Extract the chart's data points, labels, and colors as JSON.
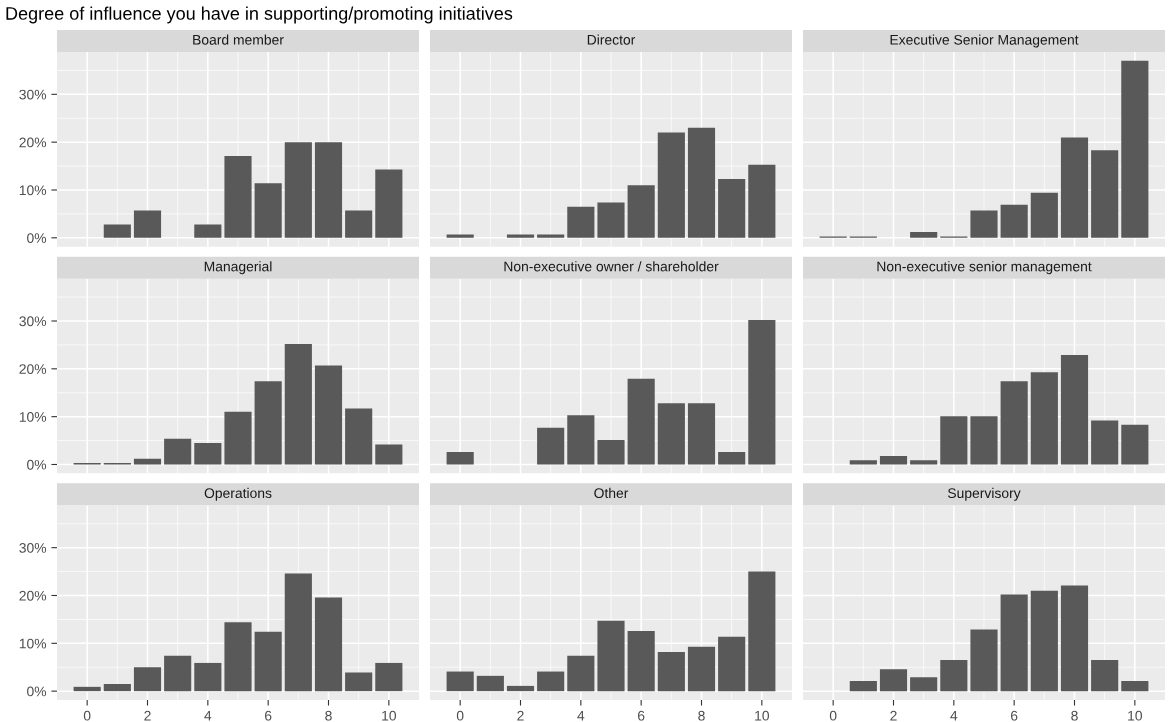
{
  "chart_data": [
    {
      "type": "bar",
      "title": "Board member",
      "annotations": [
        "Degree of influence you have in supporting/promoting initiatives"
      ],
      "x": [
        1,
        2,
        4,
        5,
        6,
        7,
        8,
        9,
        10
      ],
      "values": [
        2.8,
        5.7,
        2.8,
        17.1,
        11.4,
        20,
        20,
        5.7,
        14.3
      ],
      "color": "#595959",
      "xlim": [
        -1,
        11
      ],
      "xticks": [
        0,
        2,
        4,
        6,
        8,
        10
      ],
      "ylim": [
        -1.85,
        38.85
      ],
      "yticks": [
        {
          "value": 0,
          "label": "0%"
        },
        {
          "value": 10,
          "label": "10%"
        },
        {
          "value": 20,
          "label": "20%"
        },
        {
          "value": 30,
          "label": "30%"
        }
      ],
      "grid": true,
      "tick_labels": "y"
    },
    {
      "type": "bar",
      "title": "Director",
      "x": [
        0,
        2,
        3,
        4,
        5,
        6,
        7,
        8,
        9,
        10
      ],
      "values": [
        0.7,
        0.7,
        0.7,
        6.5,
        7.4,
        11,
        22,
        23,
        12.3,
        15.3
      ],
      "color": "#595959",
      "xlim": [
        -1,
        11
      ],
      "xticks": [
        0,
        2,
        4,
        6,
        8,
        10
      ],
      "ylim": [
        -1.85,
        38.85
      ],
      "yticks": [
        {
          "value": 0,
          "label": null
        },
        {
          "value": 10,
          "label": null
        },
        {
          "value": 20,
          "label": null
        },
        {
          "value": 30,
          "label": null
        }
      ],
      "grid": true,
      "tick_labels": false
    },
    {
      "type": "bar",
      "title": "Executive Senior Management",
      "x": [
        0,
        1,
        3,
        4,
        5,
        6,
        7,
        8,
        9,
        10
      ],
      "values": [
        0.3,
        0.3,
        1.2,
        0.3,
        5.7,
        6.9,
        9.4,
        21,
        18.3,
        37
      ],
      "color": "#595959",
      "xlim": [
        -1,
        11
      ],
      "xticks": [
        0,
        2,
        4,
        6,
        8,
        10
      ],
      "ylim": [
        -1.85,
        38.85
      ],
      "yticks": [
        {
          "value": 0,
          "label": null
        },
        {
          "value": 10,
          "label": null
        },
        {
          "value": 20,
          "label": null
        },
        {
          "value": 30,
          "label": null
        }
      ],
      "grid": true,
      "tick_labels": false
    },
    {
      "type": "bar",
      "title": "Managerial",
      "x": [
        0,
        1,
        2,
        3,
        4,
        5,
        6,
        7,
        8,
        9,
        10
      ],
      "values": [
        0.3,
        0.3,
        1.2,
        5.4,
        4.5,
        11,
        17.4,
        25.2,
        20.7,
        11.7,
        4.2
      ],
      "color": "#595959",
      "xlim": [
        -1,
        11
      ],
      "xticks": [
        0,
        2,
        4,
        6,
        8,
        10
      ],
      "ylim": [
        -1.85,
        38.85
      ],
      "yticks": [
        {
          "value": 0,
          "label": "0%"
        },
        {
          "value": 10,
          "label": "10%"
        },
        {
          "value": 20,
          "label": "20%"
        },
        {
          "value": 30,
          "label": "30%"
        }
      ],
      "grid": true,
      "tick_labels": "y"
    },
    {
      "type": "bar",
      "title": "Non-executive owner / shareholder",
      "x": [
        0,
        3,
        4,
        5,
        6,
        7,
        8,
        9,
        10
      ],
      "values": [
        2.6,
        7.7,
        10.3,
        5.1,
        17.9,
        12.8,
        12.8,
        2.6,
        30.2
      ],
      "color": "#595959",
      "xlim": [
        -1,
        11
      ],
      "xticks": [
        0,
        2,
        4,
        6,
        8,
        10
      ],
      "ylim": [
        -1.85,
        38.85
      ],
      "yticks": [
        {
          "value": 0,
          "label": null
        },
        {
          "value": 10,
          "label": null
        },
        {
          "value": 20,
          "label": null
        },
        {
          "value": 30,
          "label": null
        }
      ],
      "grid": true,
      "tick_labels": false
    },
    {
      "type": "bar",
      "title": "Non-executive senior management",
      "x": [
        1,
        2,
        3,
        4,
        5,
        6,
        7,
        8,
        9,
        10
      ],
      "values": [
        0.9,
        1.8,
        0.9,
        10.1,
        10.1,
        17.4,
        19.3,
        22.9,
        9.2,
        8.3
      ],
      "color": "#595959",
      "xlim": [
        -1,
        11
      ],
      "xticks": [
        0,
        2,
        4,
        6,
        8,
        10
      ],
      "ylim": [
        -1.85,
        38.85
      ],
      "yticks": [
        {
          "value": 0,
          "label": null
        },
        {
          "value": 10,
          "label": null
        },
        {
          "value": 20,
          "label": null
        },
        {
          "value": 30,
          "label": null
        }
      ],
      "grid": true,
      "tick_labels": false
    },
    {
      "type": "bar",
      "title": "Operations",
      "x": [
        0,
        1,
        2,
        3,
        4,
        5,
        6,
        7,
        8,
        9,
        10
      ],
      "values": [
        0.9,
        1.5,
        5,
        7.4,
        5.9,
        14.4,
        12.4,
        24.6,
        19.6,
        3.9,
        5.9
      ],
      "color": "#595959",
      "xlim": [
        -1,
        11
      ],
      "xticks": [
        0,
        2,
        4,
        6,
        8,
        10
      ],
      "ylim": [
        -1.85,
        38.85
      ],
      "yticks": [
        {
          "value": 0,
          "label": "0%"
        },
        {
          "value": 10,
          "label": "10%"
        },
        {
          "value": 20,
          "label": "20%"
        },
        {
          "value": 30,
          "label": "30%"
        }
      ],
      "grid": true
    },
    {
      "type": "bar",
      "title": "Other",
      "x": [
        0,
        1,
        2,
        3,
        4,
        5,
        6,
        7,
        8,
        9,
        10
      ],
      "values": [
        4.1,
        3.2,
        1.1,
        4.1,
        7.4,
        14.7,
        12.6,
        8.2,
        9.3,
        11.4,
        25
      ],
      "color": "#595959",
      "xlim": [
        -1,
        11
      ],
      "xticks": [
        0,
        2,
        4,
        6,
        8,
        10
      ],
      "ylim": [
        -1.85,
        38.85
      ],
      "yticks": [
        {
          "value": 0,
          "label": null
        },
        {
          "value": 10,
          "label": null
        },
        {
          "value": 20,
          "label": null
        },
        {
          "value": 30,
          "label": null
        }
      ],
      "grid": true,
      "tick_labels": "x"
    },
    {
      "type": "bar",
      "title": "Supervisory",
      "x": [
        1,
        2,
        3,
        4,
        5,
        6,
        7,
        8,
        9,
        10
      ],
      "values": [
        2.1,
        4.6,
        2.9,
        6.5,
        12.9,
        20.2,
        21,
        22.1,
        6.5,
        2.1
      ],
      "color": "#595959",
      "xlim": [
        -1,
        11
      ],
      "xticks": [
        0,
        2,
        4,
        6,
        8,
        10
      ],
      "ylim": [
        -1.85,
        38.85
      ],
      "yticks": [
        {
          "value": 0,
          "label": null
        },
        {
          "value": 10,
          "label": null
        },
        {
          "value": 20,
          "label": null
        },
        {
          "value": 30,
          "label": null
        }
      ],
      "grid": true,
      "tick_labels": "x"
    }
  ]
}
